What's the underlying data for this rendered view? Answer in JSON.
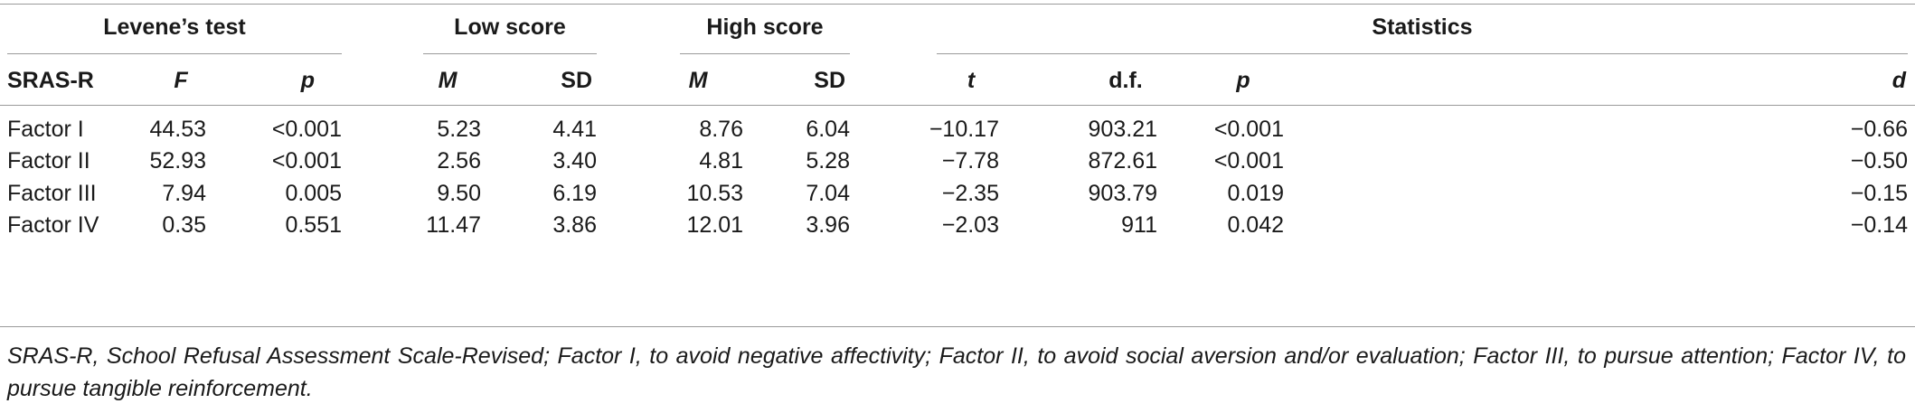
{
  "groups": {
    "levene": "Levene’s test",
    "low": "Low score",
    "high": "High score",
    "stats": "Statistics"
  },
  "columns": {
    "variable": "SRAS-R",
    "F": "F",
    "p1": "p",
    "M1": "M",
    "SD1": "SD",
    "M2": "M",
    "SD2": "SD",
    "t": "t",
    "df": "d.f.",
    "p2": "p",
    "d": "d"
  },
  "rows": [
    {
      "label": "Factor I",
      "F": "44.53",
      "p1": "<0.001",
      "M1": "5.23",
      "SD1": "4.41",
      "M2": "8.76",
      "SD2": "6.04",
      "t": "−10.17",
      "df": "903.21",
      "p2": "<0.001",
      "d": "−0.66"
    },
    {
      "label": "Factor II",
      "F": "52.93",
      "p1": "<0.001",
      "M1": "2.56",
      "SD1": "3.40",
      "M2": "4.81",
      "SD2": "5.28",
      "t": "−7.78",
      "df": "872.61",
      "p2": "<0.001",
      "d": "−0.50"
    },
    {
      "label": "Factor III",
      "F": "7.94",
      "p1": "0.005",
      "M1": "9.50",
      "SD1": "6.19",
      "M2": "10.53",
      "SD2": "7.04",
      "t": "−2.35",
      "df": "903.79",
      "p2": "0.019",
      "d": "−0.15"
    },
    {
      "label": "Factor IV",
      "F": "0.35",
      "p1": "0.551",
      "M1": "11.47",
      "SD1": "3.86",
      "M2": "12.01",
      "SD2": "3.96",
      "t": "−2.03",
      "df": "911",
      "p2": "0.042",
      "d": "−0.14"
    }
  ],
  "footnote": "SRAS-R, School Refusal Assessment Scale-Revised; Factor I, to avoid negative affectivity; Factor II, to avoid social aversion and/or evaluation; Factor III, to pursue attention; Factor IV, to pursue tangible reinforcement."
}
